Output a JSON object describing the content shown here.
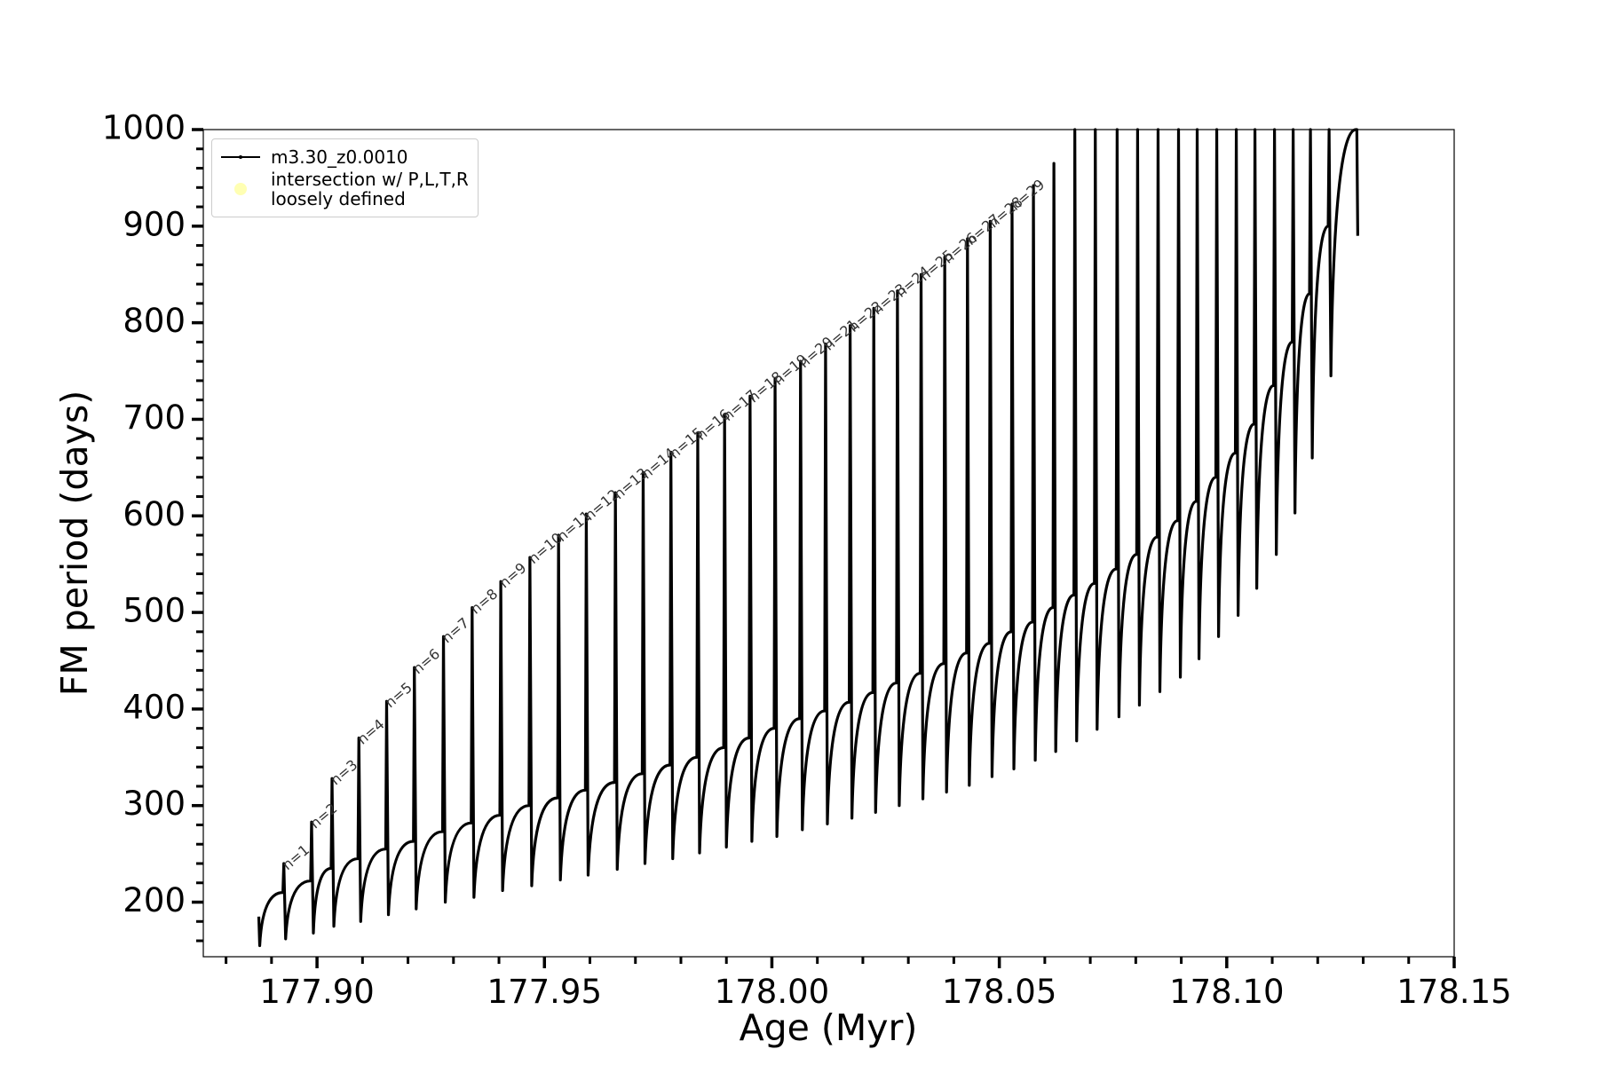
{
  "chart_data": {
    "type": "line",
    "xlabel": "Age (Myr)",
    "ylabel": "FM period (days)",
    "xlim": [
      177.875,
      178.15
    ],
    "ylim": [
      143.5,
      1000
    ],
    "xticks": [
      {
        "value": 177.9,
        "label": "177.90"
      },
      177.95,
      {
        "value": 178.0,
        "label": "178.00"
      },
      178.05,
      {
        "value": 178.1,
        "label": "178.10"
      },
      178.15
    ],
    "xminorticks": [
      177.88,
      177.89,
      177.91,
      177.92,
      177.93,
      177.94,
      177.96,
      177.97,
      177.98,
      177.99,
      178.01,
      178.02,
      178.03,
      178.04,
      178.06,
      178.07,
      178.08,
      178.09,
      178.11,
      178.12,
      178.13,
      178.14
    ],
    "yticks": [
      200,
      300,
      400,
      500,
      600,
      700,
      800,
      900,
      1000
    ],
    "yminorticks": [
      160,
      180,
      220,
      240,
      260,
      280,
      320,
      340,
      360,
      380,
      420,
      440,
      460,
      480,
      520,
      540,
      560,
      580,
      620,
      640,
      660,
      680,
      720,
      740,
      760,
      780,
      820,
      840,
      860,
      880,
      920,
      940,
      960,
      980
    ],
    "legend": "upper left",
    "annotations": [
      "n=1",
      "n=2",
      "n=3",
      "n=4",
      "n=5",
      "n=6",
      "n=7",
      "n=8",
      "n=9",
      "n=10",
      "n=11",
      "n=12",
      "n=13",
      "n=14",
      "n=15",
      "n=16",
      "n=17",
      "n=18",
      "n=19",
      "n=20",
      "n=21",
      "n=22",
      "n=23",
      "n=24",
      "n=25",
      "n=26",
      "n=27",
      "n=28",
      "n=29"
    ],
    "series": [
      {
        "name": "m3.30_z0.0010",
        "color": "#000000",
        "x": [
          177.8872,
          177.8874,
          177.8925,
          177.8927,
          177.8931,
          177.8986,
          177.8988,
          177.8992,
          177.9031,
          177.9033,
          177.9037,
          177.909,
          177.9092,
          177.9096,
          177.9151,
          177.9153,
          177.9157,
          177.9212,
          177.9214,
          177.9218,
          177.9276,
          177.9278,
          177.9282,
          177.9339,
          177.9341,
          177.9345,
          177.9402,
          177.9404,
          177.9408,
          177.9466,
          177.9468,
          177.9472,
          177.9529,
          177.9531,
          177.9535,
          177.959,
          177.9592,
          177.9596,
          177.9654,
          177.9656,
          177.966,
          177.9715,
          177.9717,
          177.9721,
          177.9776,
          177.9778,
          177.9782,
          177.9835,
          177.9837,
          177.9841,
          177.9894,
          177.9896,
          177.99,
          177.995,
          177.9952,
          177.9956,
          178.0005,
          178.0007,
          178.0011,
          178.0061,
          178.0063,
          178.0067,
          178.0116,
          178.0118,
          178.0122,
          178.017,
          178.0172,
          178.0176,
          178.0222,
          178.0224,
          178.0228,
          178.0274,
          178.0276,
          178.028,
          178.0326,
          178.0328,
          178.0332,
          178.0378,
          178.038,
          178.0384,
          178.0428,
          178.043,
          178.0434,
          178.0478,
          178.048,
          178.0484,
          178.0526,
          178.0528,
          178.0532,
          178.0573,
          178.0575,
          178.0579,
          178.0618,
          178.062,
          178.0624,
          178.0664,
          178.0666,
          178.067,
          178.0709,
          178.0711,
          178.0715,
          178.0757,
          178.0759,
          178.0763,
          178.0802,
          178.0804,
          178.0808,
          178.0847,
          178.0849,
          178.0853,
          178.0892,
          178.0894,
          178.0898,
          178.0933,
          178.0935,
          178.0939,
          178.0976,
          178.0978,
          178.0982,
          178.1019,
          178.1021,
          178.1025,
          178.106,
          178.1062,
          178.1066,
          178.1103,
          178.1105,
          178.1109,
          178.1144,
          178.1146,
          178.115,
          178.1182,
          178.1184,
          178.1188,
          178.1223,
          178.1225,
          178.1229,
          178.1284,
          178.1286,
          178.1288
        ],
        "values": [
          185,
          155,
          210,
          240,
          162,
          222,
          283,
          168,
          235,
          328,
          175,
          245,
          370,
          180,
          255,
          408,
          187,
          263,
          443,
          193,
          273,
          475,
          200,
          282,
          505,
          205,
          290,
          532,
          212,
          300,
          557,
          217,
          308,
          580,
          223,
          316,
          602,
          228,
          324,
          624,
          234,
          333,
          645,
          240,
          342,
          666,
          245,
          350,
          685,
          251,
          360,
          705,
          257,
          370,
          724,
          263,
          380,
          742,
          268,
          390,
          760,
          275,
          398,
          778,
          281,
          407,
          797,
          287,
          417,
          815,
          293,
          427,
          833,
          300,
          437,
          850,
          307,
          447,
          868,
          314,
          458,
          887,
          321,
          468,
          905,
          330,
          480,
          923,
          338,
          490,
          942,
          347,
          505,
          965,
          356,
          518,
          1000,
          367,
          530,
          1000,
          379,
          545,
          1000,
          392,
          560,
          1000,
          404,
          578,
          1000,
          418,
          595,
          1000,
          433,
          615,
          1000,
          452,
          640,
          1000,
          475,
          665,
          1000,
          497,
          695,
          1000,
          525,
          735,
          1000,
          560,
          780,
          1000,
          603,
          830,
          1000,
          660,
          900,
          1000,
          745,
          1000,
          1000,
          890
        ]
      },
      {
        "name": "intersection w/ P,L,T,R\nloosely defined",
        "color": "#ffffb3",
        "type": "scatter",
        "x": [],
        "values": []
      }
    ]
  }
}
